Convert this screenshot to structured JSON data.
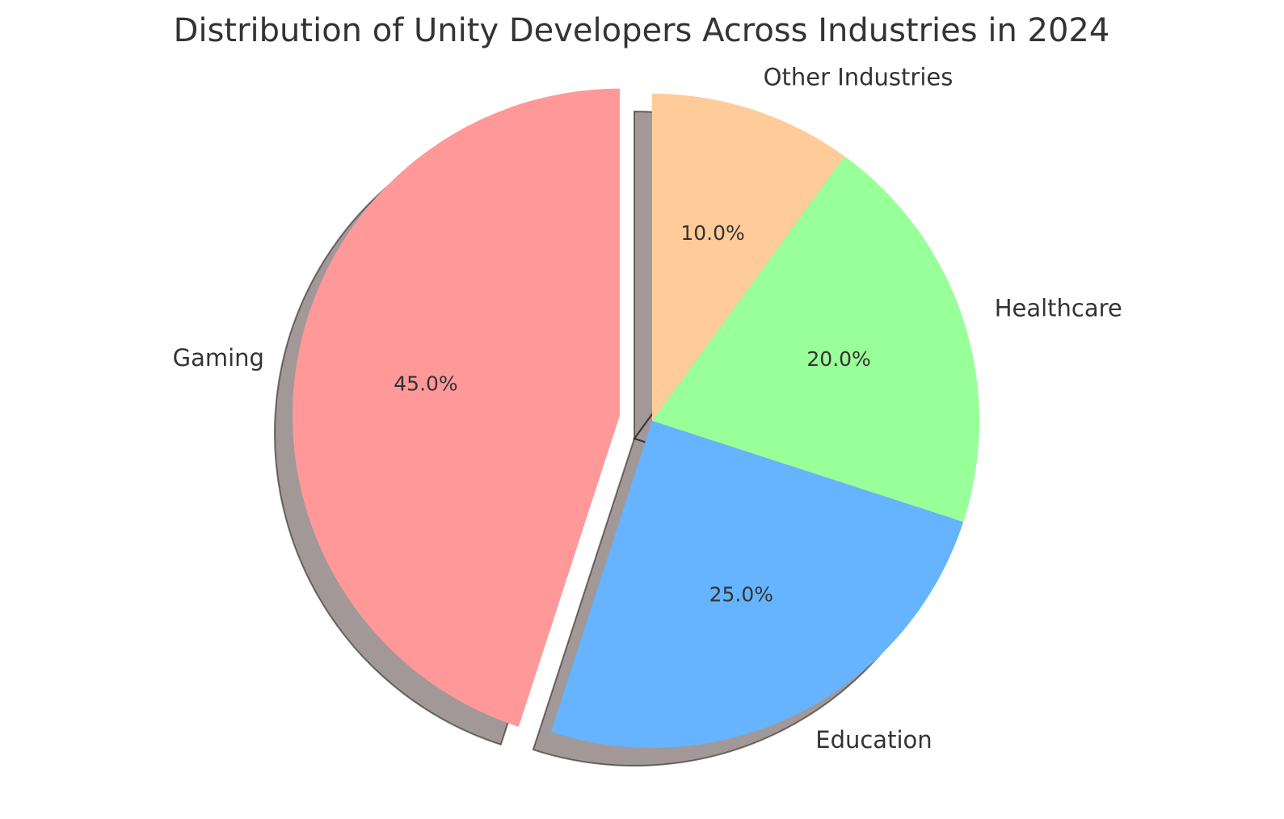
{
  "chart_data": {
    "type": "pie",
    "title": "Distribution of Unity Developers Across Industries in 2024",
    "categories": [
      "Gaming",
      "Education",
      "Healthcare",
      "Other Industries"
    ],
    "values": [
      45,
      25,
      20,
      10
    ],
    "value_labels": [
      "45.0%",
      "25.0%",
      "20.0%",
      "10.0%"
    ],
    "colors": [
      "#ff9999",
      "#66b3ff",
      "#99ff99",
      "#ffcc99"
    ],
    "explode": [
      0.1,
      0,
      0,
      0
    ],
    "start_angle": 90,
    "shadow": true
  }
}
